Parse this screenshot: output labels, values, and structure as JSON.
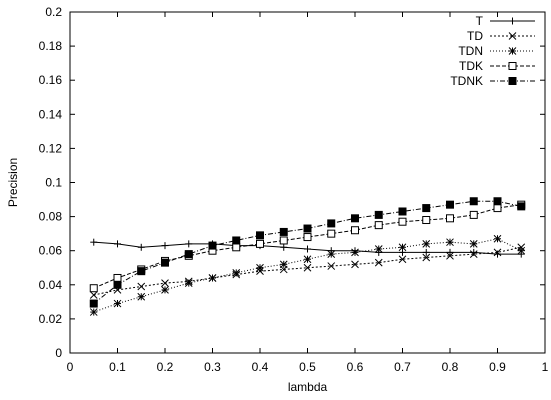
{
  "chart_data": {
    "type": "line",
    "title": "",
    "xlabel": "lambda",
    "ylabel": "Precision",
    "xlim": [
      0,
      1
    ],
    "ylim": [
      0,
      0.2
    ],
    "xticks": [
      0,
      0.1,
      0.2,
      0.3,
      0.4,
      0.5,
      0.6,
      0.7,
      0.8,
      0.9,
      1
    ],
    "xtick_labels": [
      "0",
      "0.1",
      "0.2",
      "0.3",
      "0.4",
      "0.5",
      "0.6",
      "0.7",
      "0.8",
      "0.9",
      "1"
    ],
    "yticks": [
      0,
      0.02,
      0.04,
      0.06,
      0.08,
      0.1,
      0.12,
      0.14,
      0.16,
      0.18,
      0.2
    ],
    "ytick_labels": [
      "0",
      "0.02",
      "0.04",
      "0.06",
      "0.08",
      "0.1",
      "0.12",
      "0.14",
      "0.16",
      "0.18",
      "0.2"
    ],
    "grid": false,
    "legend_position": "top-right",
    "x": [
      0.05,
      0.1,
      0.15,
      0.2,
      0.25,
      0.3,
      0.35,
      0.4,
      0.45,
      0.5,
      0.55,
      0.6,
      0.65,
      0.7,
      0.75,
      0.8,
      0.85,
      0.9,
      0.95
    ],
    "series": [
      {
        "name": "T",
        "marker": "plus",
        "dash": "",
        "values": [
          0.065,
          0.064,
          0.062,
          0.063,
          0.064,
          0.064,
          0.063,
          0.063,
          0.062,
          0.061,
          0.06,
          0.06,
          0.059,
          0.059,
          0.059,
          0.059,
          0.059,
          0.058,
          0.058
        ]
      },
      {
        "name": "TD",
        "marker": "x",
        "dash": "2,2",
        "values": [
          0.034,
          0.037,
          0.039,
          0.041,
          0.042,
          0.044,
          0.046,
          0.048,
          0.049,
          0.05,
          0.051,
          0.052,
          0.053,
          0.055,
          0.056,
          0.057,
          0.058,
          0.059,
          0.062
        ]
      },
      {
        "name": "TDN",
        "marker": "star",
        "dash": "1,2",
        "values": [
          0.024,
          0.029,
          0.033,
          0.037,
          0.041,
          0.044,
          0.047,
          0.05,
          0.052,
          0.055,
          0.058,
          0.059,
          0.061,
          0.062,
          0.064,
          0.065,
          0.064,
          0.067,
          0.06
        ]
      },
      {
        "name": "TDK",
        "marker": "open-square",
        "dash": "4,2",
        "values": [
          0.038,
          0.044,
          0.049,
          0.054,
          0.057,
          0.06,
          0.062,
          0.064,
          0.066,
          0.068,
          0.07,
          0.072,
          0.075,
          0.077,
          0.078,
          0.079,
          0.081,
          0.085,
          0.087
        ]
      },
      {
        "name": "TDNK",
        "marker": "filled-square",
        "dash": "5,2,1,2",
        "values": [
          0.029,
          0.04,
          0.048,
          0.053,
          0.058,
          0.063,
          0.066,
          0.069,
          0.071,
          0.073,
          0.076,
          0.079,
          0.081,
          0.083,
          0.085,
          0.087,
          0.089,
          0.089,
          0.086
        ]
      }
    ]
  }
}
